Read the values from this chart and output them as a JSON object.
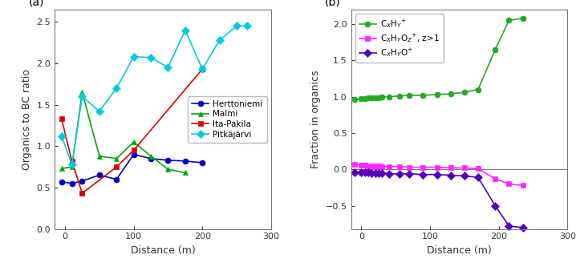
{
  "panel_a": {
    "herttoniemi": {
      "x": [
        -5,
        10,
        25,
        50,
        75,
        100,
        125,
        150,
        175,
        200
      ],
      "y": [
        0.57,
        0.55,
        0.58,
        0.65,
        0.6,
        0.9,
        0.85,
        0.83,
        0.82,
        0.8
      ],
      "color": "#0000cc",
      "marker": "o",
      "label": "Herttoniemi"
    },
    "malmi": {
      "x": [
        -5,
        10,
        25,
        50,
        75,
        100,
        125,
        150,
        175
      ],
      "y": [
        0.73,
        0.75,
        1.65,
        0.88,
        0.85,
        1.05,
        0.88,
        0.72,
        0.68
      ],
      "color": "#00aa00",
      "marker": "^",
      "label": "Malmi"
    },
    "ita_pakila": {
      "x": [
        -5,
        10,
        25,
        75,
        100,
        200
      ],
      "y": [
        1.33,
        0.82,
        0.43,
        0.75,
        0.95,
        1.93
      ],
      "color": "#dd0000",
      "marker": "s",
      "label": "Ita-Pakila"
    },
    "pitkajarvi": {
      "x": [
        -5,
        10,
        25,
        50,
        75,
        100,
        125,
        150,
        175,
        200,
        225,
        250,
        265
      ],
      "y": [
        1.12,
        0.78,
        1.6,
        1.42,
        1.7,
        2.08,
        2.07,
        1.95,
        2.4,
        1.93,
        2.28,
        2.45,
        2.45
      ],
      "color": "#00ccdd",
      "marker": "D",
      "label": "Pitkäjärvi"
    }
  },
  "panel_b": {
    "cxhy": {
      "x": [
        -10,
        0,
        5,
        10,
        15,
        20,
        25,
        30,
        40,
        55,
        70,
        90,
        110,
        130,
        150,
        170,
        195,
        215,
        235
      ],
      "y": [
        0.96,
        0.97,
        0.97,
        0.98,
        0.98,
        0.99,
        0.99,
        1.0,
        1.0,
        1.01,
        1.02,
        1.02,
        1.03,
        1.04,
        1.06,
        1.1,
        1.65,
        2.05,
        2.08
      ],
      "color": "#22aa22",
      "marker": "o",
      "label": "C$_{X}$H$_{Y}$$^{+}$"
    },
    "cxhyoz": {
      "x": [
        -10,
        0,
        5,
        10,
        15,
        20,
        25,
        30,
        40,
        55,
        70,
        90,
        110,
        130,
        150,
        170,
        195,
        215,
        235
      ],
      "y": [
        0.07,
        0.06,
        0.06,
        0.05,
        0.05,
        0.05,
        0.05,
        0.04,
        0.04,
        0.04,
        0.03,
        0.03,
        0.03,
        0.02,
        0.02,
        0.01,
        -0.13,
        -0.2,
        -0.22
      ],
      "color": "#ff22ff",
      "marker": "s",
      "label": "C$_{X}$H$_{Y}$O$_{Z}$$^{+}$, z>1"
    },
    "cxhyo": {
      "x": [
        -10,
        0,
        5,
        10,
        15,
        20,
        25,
        30,
        40,
        55,
        70,
        90,
        110,
        130,
        150,
        170,
        195,
        215,
        235
      ],
      "y": [
        -0.04,
        -0.04,
        -0.04,
        -0.04,
        -0.05,
        -0.05,
        -0.05,
        -0.05,
        -0.06,
        -0.06,
        -0.06,
        -0.07,
        -0.07,
        -0.08,
        -0.09,
        -0.11,
        -0.5,
        -0.78,
        -0.8
      ],
      "color": "#5500bb",
      "marker": "D",
      "label": "C$_{X}$H$_{Y}$O$^{+}$"
    }
  },
  "ylabel_a": "Organics to BC ratio",
  "ylabel_b": "Fraction in organics",
  "xlabel": "Distance (m)",
  "xlim_a": [
    -15,
    290
  ],
  "ylim_a": [
    0.0,
    2.65
  ],
  "xlim_b": [
    -15,
    290
  ],
  "ylim_b": [
    -0.82,
    2.2
  ],
  "yticks_a": [
    0.0,
    0.5,
    1.0,
    1.5,
    2.0,
    2.5
  ],
  "yticks_b": [
    -0.5,
    0.0,
    0.5,
    1.0,
    1.5,
    2.0
  ],
  "xticks": [
    0,
    100,
    200,
    300
  ]
}
